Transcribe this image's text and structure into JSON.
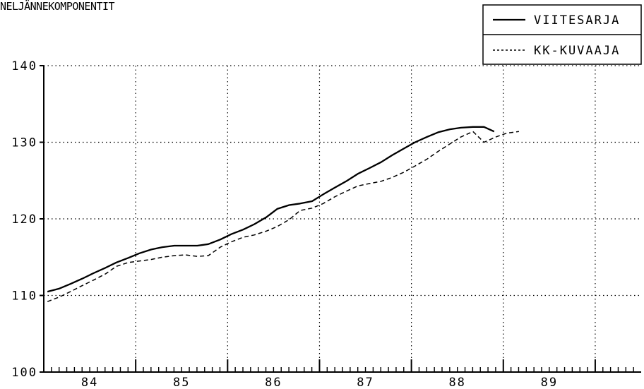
{
  "chart_data": {
    "type": "line",
    "title": "NELJÄNNEKOMPONENTIT",
    "xlabel": "",
    "ylabel": "",
    "xlim": [
      83.5,
      90.0
    ],
    "ylim": [
      100,
      140
    ],
    "yticks": [
      100,
      110,
      120,
      130,
      140
    ],
    "ytick_labels": [
      "100",
      "110",
      "120",
      "130",
      "140"
    ],
    "xticks": [
      84,
      85,
      86,
      87,
      88,
      89
    ],
    "xtick_labels": [
      "84",
      "85",
      "86",
      "87",
      "88",
      "89"
    ],
    "year_boundaries": [
      84.5,
      85.5,
      86.5,
      87.5,
      88.5,
      89.5
    ],
    "minor_ticks_per_year": 12,
    "grid": true,
    "legend_position": "top-right",
    "series": [
      {
        "name": "VIITESARJA",
        "style": "solid",
        "color": "#000000",
        "x": [
          83.54,
          83.67,
          83.79,
          83.92,
          84.04,
          84.17,
          84.29,
          84.42,
          84.54,
          84.67,
          84.79,
          84.92,
          85.04,
          85.17,
          85.29,
          85.42,
          85.54,
          85.67,
          85.79,
          85.92,
          86.04,
          86.17,
          86.29,
          86.42,
          86.54,
          86.67,
          86.79,
          86.92,
          87.04,
          87.17,
          87.29,
          87.42,
          87.54,
          87.67,
          87.79,
          87.92,
          88.04,
          88.17,
          88.29,
          88.4
        ],
        "y": [
          110.5,
          110.9,
          111.5,
          112.2,
          112.9,
          113.6,
          114.3,
          114.9,
          115.5,
          116.0,
          116.3,
          116.5,
          116.5,
          116.5,
          116.7,
          117.3,
          118.0,
          118.6,
          119.3,
          120.2,
          121.3,
          121.8,
          122.0,
          122.3,
          123.2,
          124.1,
          124.9,
          125.9,
          126.6,
          127.4,
          128.3,
          129.2,
          130.0,
          130.7,
          131.3,
          131.7,
          131.9,
          132.0,
          132.0,
          131.4
        ]
      },
      {
        "name": "KK-KUVAAJA",
        "style": "dashed",
        "color": "#000000",
        "x": [
          83.54,
          83.67,
          83.79,
          83.92,
          84.04,
          84.17,
          84.29,
          84.42,
          84.54,
          84.67,
          84.79,
          84.92,
          85.04,
          85.17,
          85.29,
          85.42,
          85.54,
          85.67,
          85.79,
          85.92,
          86.04,
          86.17,
          86.29,
          86.42,
          86.54,
          86.67,
          86.79,
          86.92,
          87.04,
          87.17,
          87.29,
          87.42,
          87.54,
          87.67,
          87.79,
          87.92,
          88.04,
          88.17,
          88.29,
          88.42,
          88.54,
          88.67
        ],
        "y": [
          109.2,
          109.8,
          110.5,
          111.3,
          112.0,
          112.8,
          113.8,
          114.3,
          114.5,
          114.7,
          115.0,
          115.2,
          115.3,
          115.1,
          115.2,
          116.3,
          117.0,
          117.6,
          117.9,
          118.4,
          119.0,
          119.9,
          121.1,
          121.4,
          122.0,
          122.9,
          123.6,
          124.3,
          124.6,
          124.9,
          125.4,
          126.1,
          126.9,
          127.8,
          128.8,
          129.8,
          130.7,
          131.4,
          130.0,
          130.7,
          131.2,
          131.4
        ]
      }
    ]
  }
}
